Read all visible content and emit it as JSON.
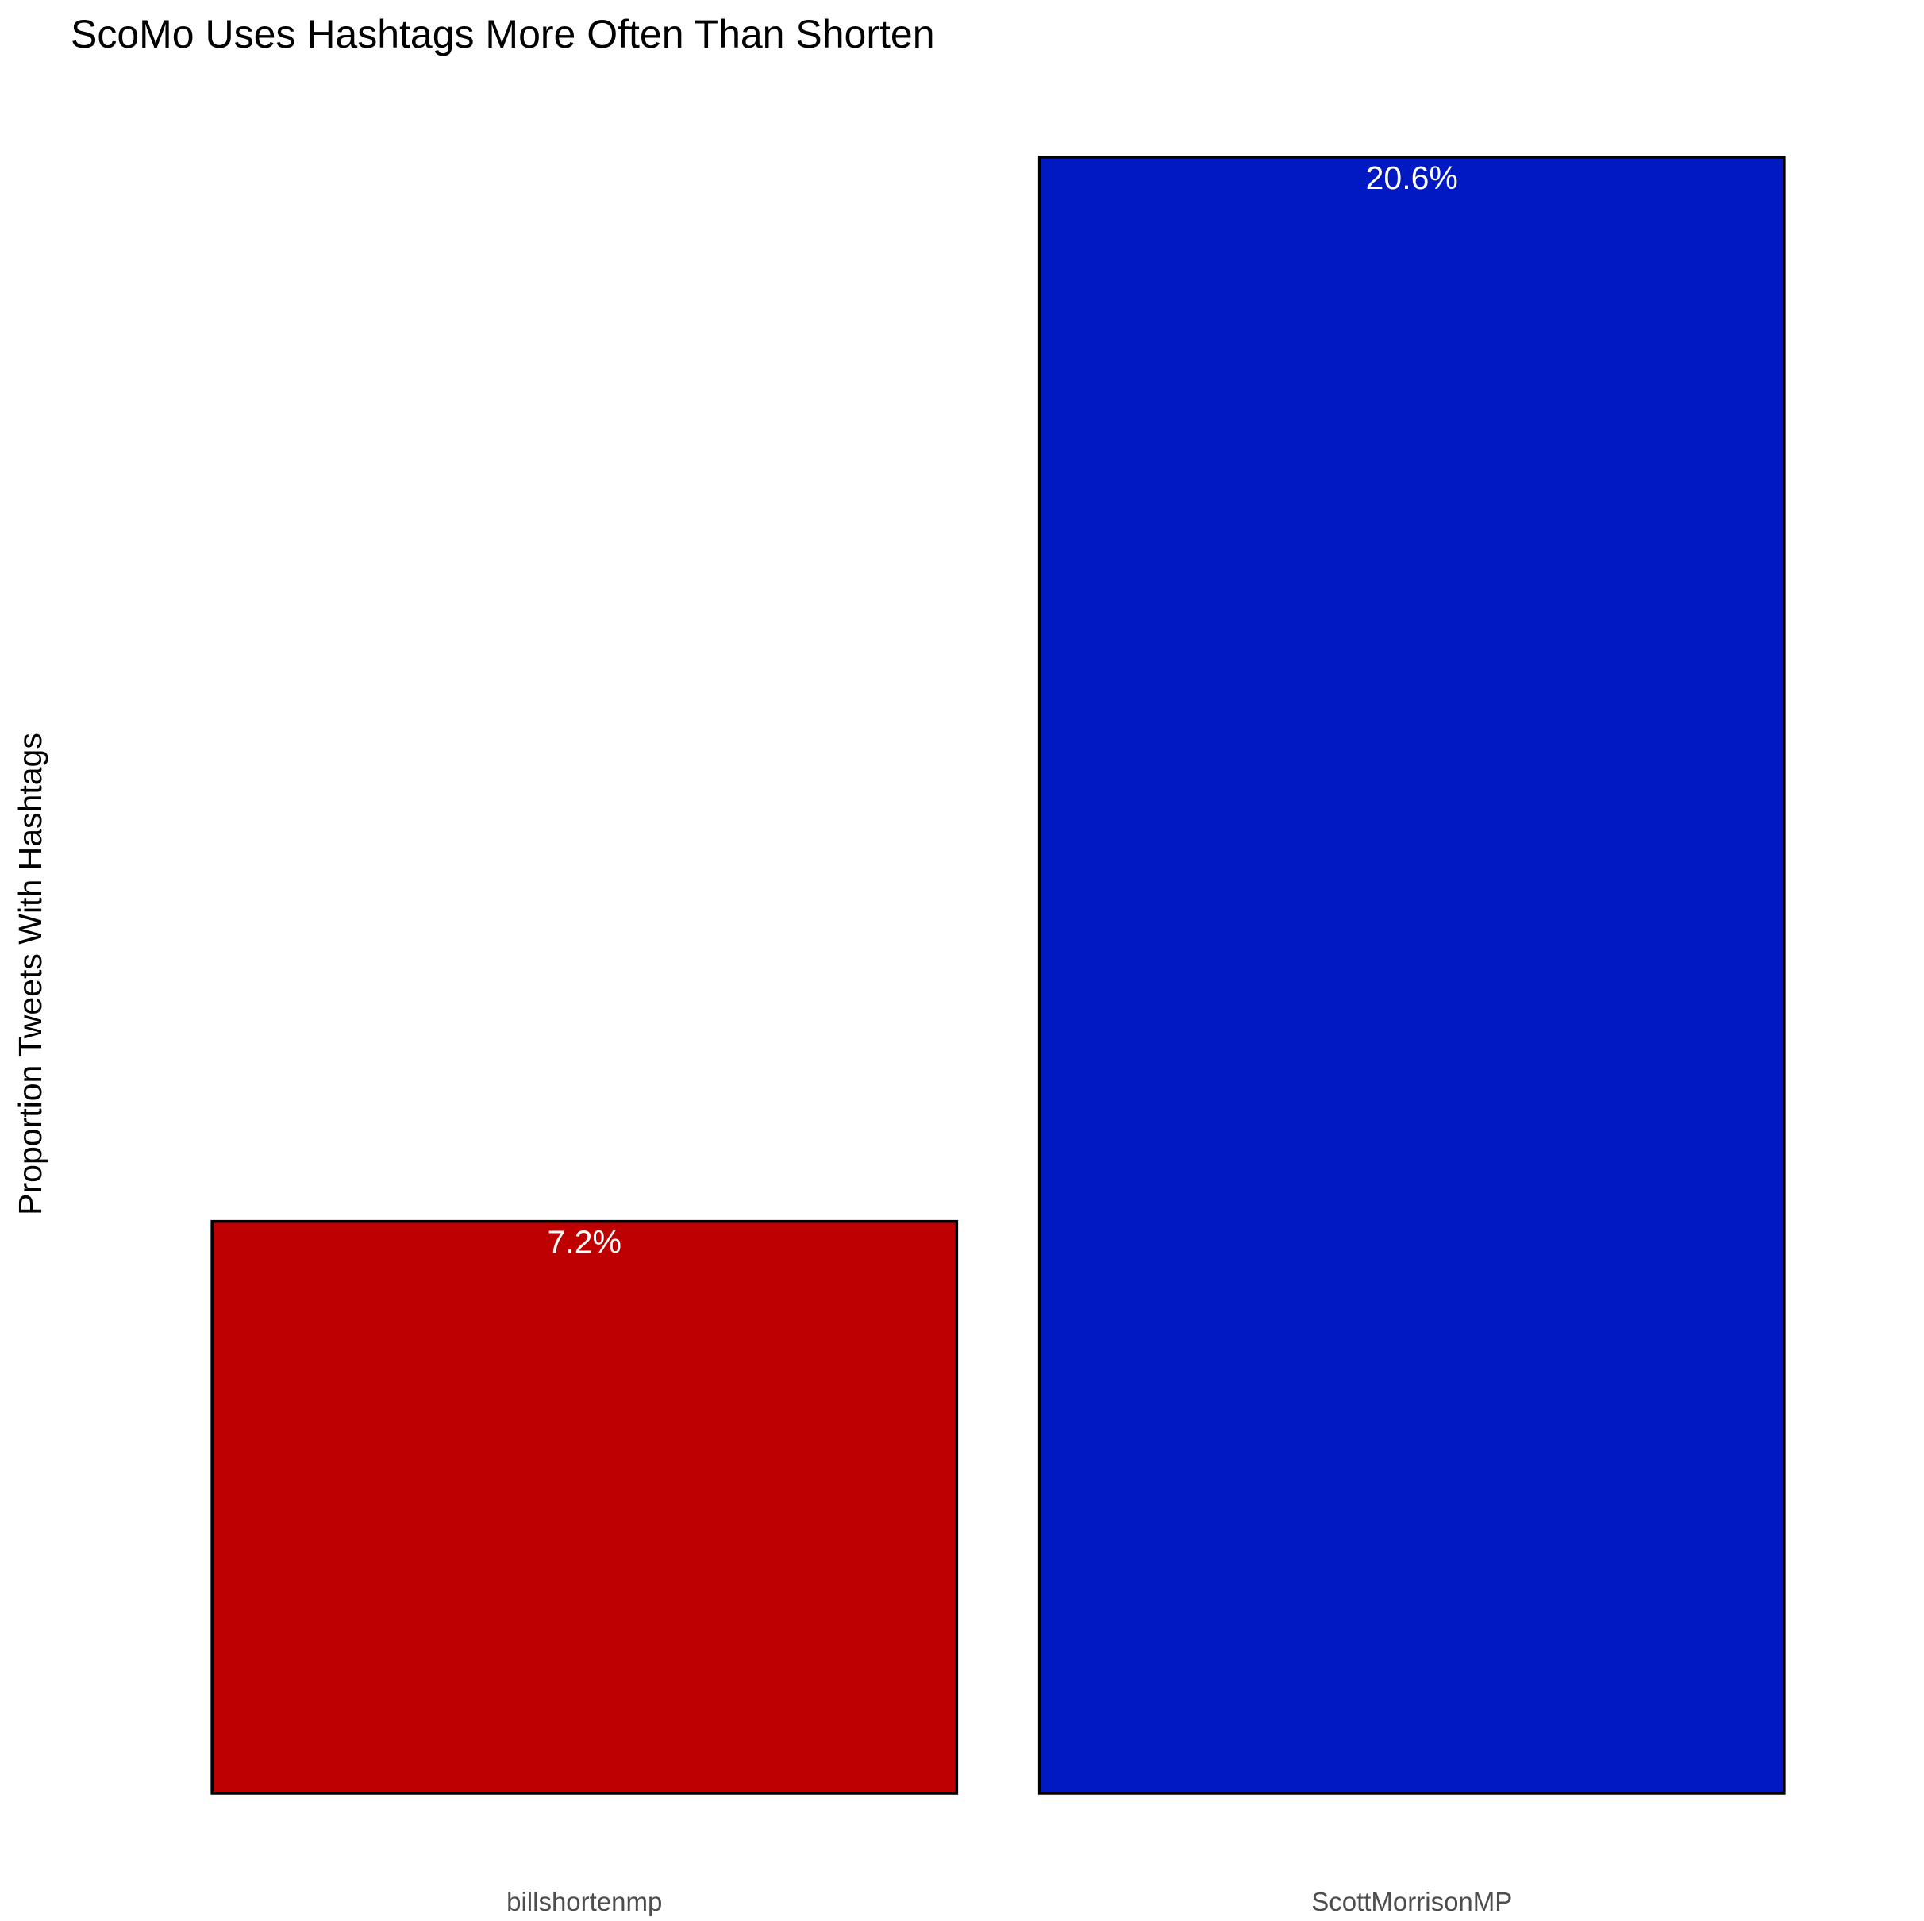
{
  "chart_data": {
    "type": "bar",
    "title": "ScoMo Uses Hashtags More Often Than Shorten",
    "xlabel": "",
    "ylabel": "Proportion Tweets With Hashtags",
    "categories": [
      "billshortenmp",
      "ScottMorrisonMP"
    ],
    "values": [
      0.072,
      0.206
    ],
    "data_labels": [
      "7.2%",
      "20.6%"
    ],
    "colors": [
      "#bf0000",
      "#0019c2"
    ],
    "ylim": [
      0,
      0.206
    ],
    "grid": false,
    "y_ticks_visible": false
  }
}
